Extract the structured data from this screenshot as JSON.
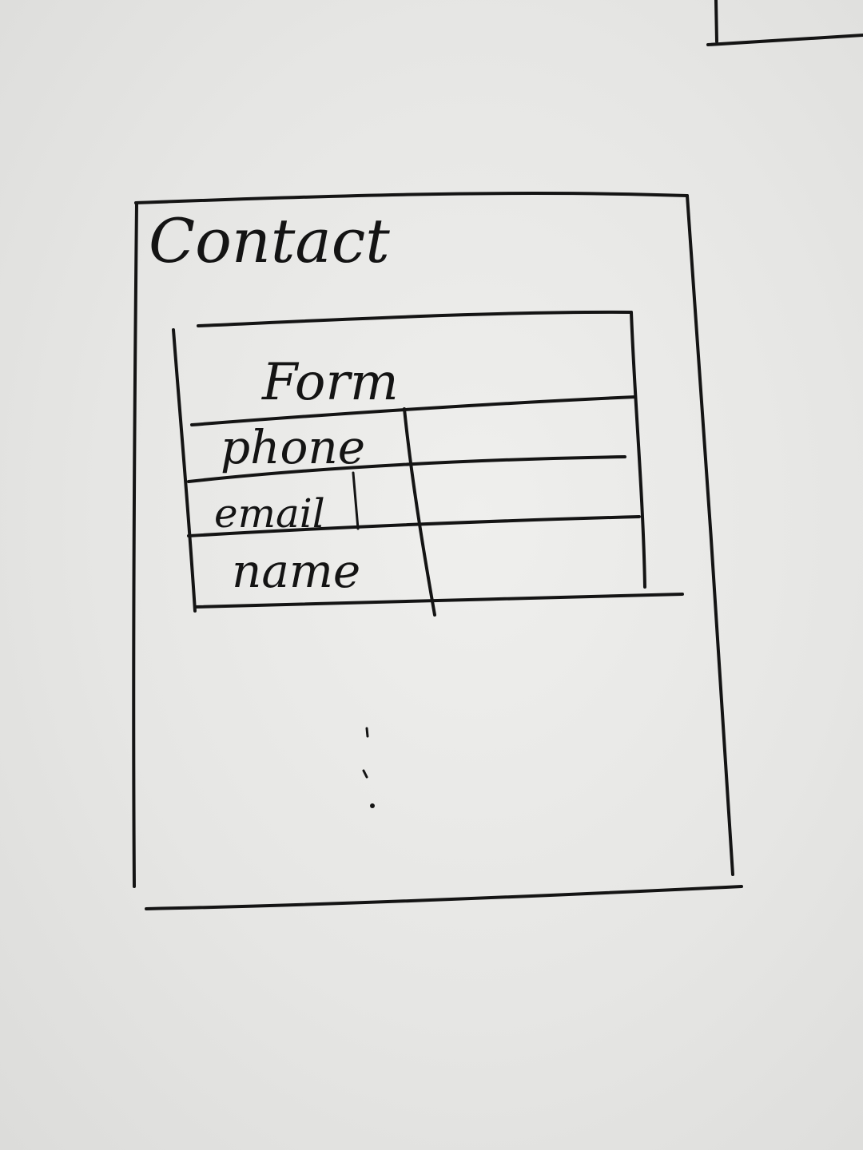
{
  "page": {
    "title": "Contact"
  },
  "form": {
    "title": "Form",
    "fields": [
      {
        "label": "phone",
        "value": ""
      },
      {
        "label": "email",
        "value": ""
      },
      {
        "label": "name",
        "value": ""
      }
    ]
  },
  "colors": {
    "ink": "#141414",
    "paper": "#e8e8e6"
  }
}
